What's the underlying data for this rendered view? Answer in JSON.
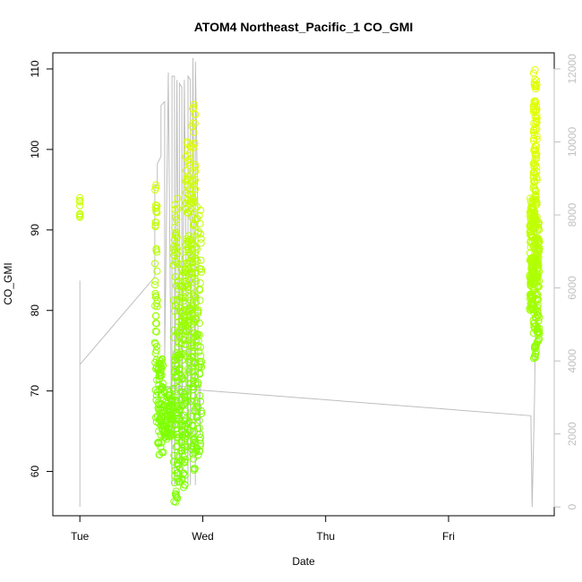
{
  "chart_data": {
    "type": "scatter",
    "title": "ATOM4 Northeast_Pacific_1 CO_GMI",
    "xlabel": "Date",
    "ylabel": "CO_GMI",
    "x_ticks": [
      "Tue",
      "Wed",
      "Thu",
      "Fri"
    ],
    "xlim": [
      -0.22,
      3.86
    ],
    "ylim": [
      54.5,
      112
    ],
    "y_ticks": [
      60,
      70,
      80,
      90,
      100,
      110
    ],
    "y2lim": [
      -240,
      12440
    ],
    "y2_ticks": [
      0,
      2000,
      4000,
      6000,
      8000,
      10000,
      12000
    ],
    "grid": false,
    "colors": {
      "points_green": "#7fff00",
      "points_yellow": "#dfff00",
      "altitude_line": "#bebebe",
      "axis": "#000000",
      "right_axis": "#c0c0c0"
    },
    "series": [
      {
        "axis": "left",
        "marker": "open-circle",
        "clusters": [
          {
            "x": [
              0.0,
              0.0
            ],
            "y": [
              91,
              94
            ],
            "n": 8
          },
          {
            "x": [
              0.61,
              0.63
            ],
            "y": [
              66,
              97
            ],
            "n": 50
          },
          {
            "x": [
              0.63,
              0.68
            ],
            "y": [
              62,
              74
            ],
            "n": 70
          },
          {
            "x": [
              0.68,
              0.76
            ],
            "y": [
              64,
              70
            ],
            "n": 70
          },
          {
            "x": [
              0.76,
              0.8
            ],
            "y": [
              56,
              94
            ],
            "n": 90
          },
          {
            "x": [
              0.8,
              0.86
            ],
            "y": [
              58,
              86
            ],
            "n": 120
          },
          {
            "x": [
              0.86,
              0.91
            ],
            "y": [
              63,
              102
            ],
            "n": 120
          },
          {
            "x": [
              0.91,
              0.94
            ],
            "y": [
              60,
              107
            ],
            "n": 90
          },
          {
            "x": [
              0.94,
              0.99
            ],
            "y": [
              62,
              93
            ],
            "n": 80
          },
          {
            "x": [
              3.66,
              3.69
            ],
            "y": [
              80,
              94
            ],
            "n": 120
          },
          {
            "x": [
              3.69,
              3.72
            ],
            "y": [
              74,
              110
            ],
            "n": 180
          },
          {
            "x": [
              3.72,
              3.74
            ],
            "y": [
              76,
              91
            ],
            "n": 70
          }
        ]
      },
      {
        "axis": "right",
        "marker": "line",
        "x": [
          0.0,
          0.0,
          0.0,
          0.61,
          0.61,
          0.63,
          0.63,
          0.66,
          0.66,
          0.69,
          0.69,
          0.72,
          0.72,
          0.75,
          0.75,
          0.77,
          0.77,
          0.79,
          0.79,
          0.81,
          0.81,
          0.83,
          0.83,
          0.85,
          0.85,
          0.88,
          0.88,
          0.9,
          0.9,
          0.92,
          0.92,
          0.94,
          0.94,
          0.96,
          0.96,
          0.98,
          0.98,
          0.61,
          3.67,
          3.68,
          3.7,
          3.72,
          3.73
        ],
        "y": [
          0,
          6200,
          3900,
          6300,
          8800,
          8800,
          9400,
          9600,
          11000,
          11100,
          4000,
          11900,
          11700,
          600,
          11800,
          11800,
          600,
          11700,
          11700,
          600,
          11600,
          11500,
          600,
          11700,
          11600,
          600,
          11800,
          11700,
          600,
          12300,
          12200,
          600,
          12200,
          8000,
          4000,
          2000,
          3300,
          3300,
          2500,
          0,
          3000,
          8000,
          7800
        ]
      }
    ]
  }
}
